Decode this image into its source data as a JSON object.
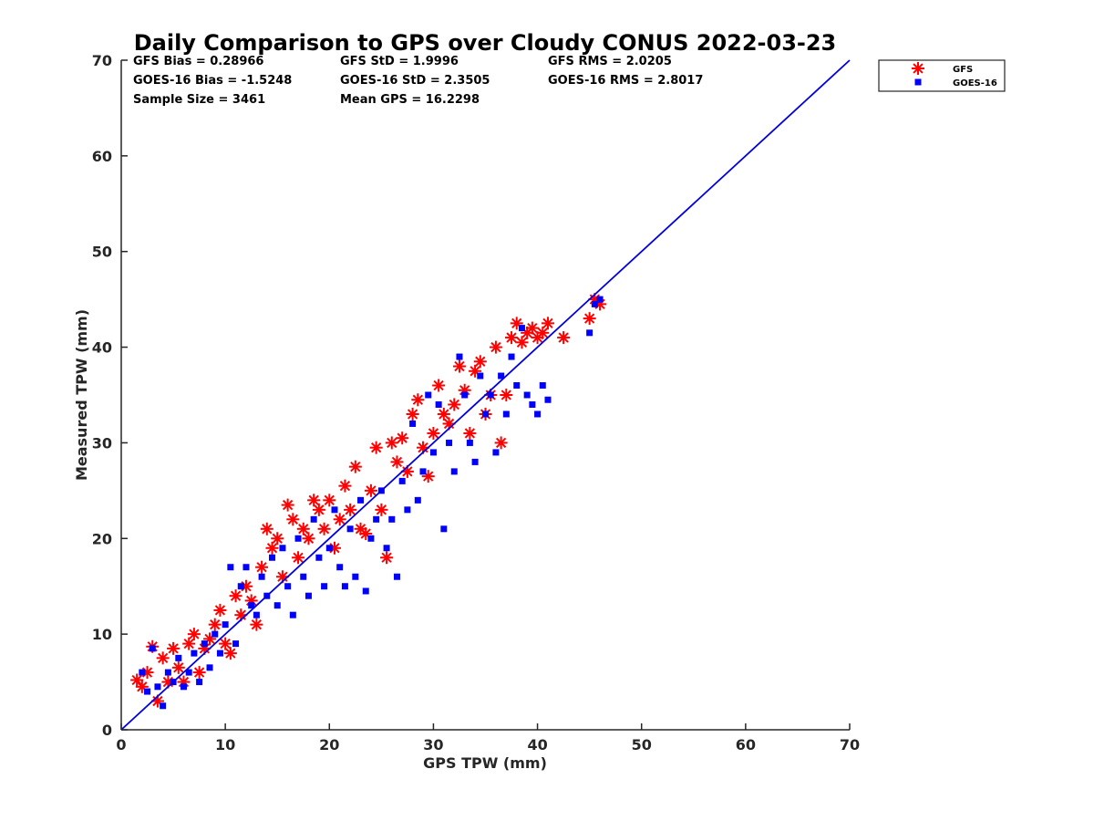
{
  "chart_data": {
    "type": "scatter",
    "title": "Daily Comparison to GPS over Cloudy CONUS 2022-03-23",
    "xlabel": "GPS TPW (mm)",
    "ylabel": "Measured TPW (mm)",
    "xlim": [
      0,
      70
    ],
    "ylim": [
      0,
      70
    ],
    "xticks": [
      "0",
      "10",
      "20",
      "30",
      "40",
      "50",
      "60",
      "70"
    ],
    "yticks": [
      "0",
      "10",
      "20",
      "30",
      "40",
      "50",
      "60",
      "70"
    ],
    "grid": false,
    "legend_position": "outside top-right",
    "reference_line": {
      "x": [
        0,
        70
      ],
      "y": [
        0,
        70
      ],
      "color": "#0000e0"
    },
    "stats": [
      [
        "GFS Bias = 0.28966",
        "GFS StD = 1.9996",
        "GFS RMS = 2.0205"
      ],
      [
        "GOES-16 Bias = -1.5248",
        "GOES-16 StD = 2.3505",
        "GOES-16 RMS = 2.8017"
      ],
      [
        "Sample Size = 3461",
        "Mean GPS = 16.2298",
        ""
      ]
    ],
    "series": [
      {
        "name": "GFS",
        "marker": "asterisk",
        "color": "#ff0000",
        "points": [
          [
            1.5,
            5.2
          ],
          [
            2,
            4.5
          ],
          [
            2.5,
            6
          ],
          [
            3,
            8.7
          ],
          [
            3.5,
            3
          ],
          [
            4,
            7.5
          ],
          [
            4.5,
            5
          ],
          [
            5,
            8.5
          ],
          [
            5.5,
            6.5
          ],
          [
            6,
            5
          ],
          [
            6.5,
            9
          ],
          [
            7,
            10
          ],
          [
            7.5,
            6
          ],
          [
            8,
            8.5
          ],
          [
            8.5,
            9.5
          ],
          [
            9,
            11
          ],
          [
            9.5,
            12.5
          ],
          [
            10,
            9
          ],
          [
            10.5,
            8
          ],
          [
            11,
            14
          ],
          [
            11.5,
            12
          ],
          [
            12,
            15
          ],
          [
            12.5,
            13.5
          ],
          [
            13,
            11
          ],
          [
            13.5,
            17
          ],
          [
            14,
            21
          ],
          [
            14.5,
            19
          ],
          [
            15,
            20
          ],
          [
            15.5,
            16
          ],
          [
            16,
            23.5
          ],
          [
            16.5,
            22
          ],
          [
            17,
            18
          ],
          [
            17.5,
            21
          ],
          [
            18,
            20
          ],
          [
            18.5,
            24
          ],
          [
            19,
            23
          ],
          [
            19.5,
            21
          ],
          [
            20,
            24
          ],
          [
            20.5,
            19
          ],
          [
            21,
            22
          ],
          [
            21.5,
            25.5
          ],
          [
            22,
            23
          ],
          [
            22.5,
            27.5
          ],
          [
            23,
            21
          ],
          [
            23.5,
            20.5
          ],
          [
            24,
            25
          ],
          [
            24.5,
            29.5
          ],
          [
            25,
            23
          ],
          [
            25.5,
            18
          ],
          [
            26,
            30
          ],
          [
            26.5,
            28
          ],
          [
            27,
            30.5
          ],
          [
            27.5,
            27
          ],
          [
            28,
            33
          ],
          [
            28.5,
            34.5
          ],
          [
            29,
            29.5
          ],
          [
            29.5,
            26.5
          ],
          [
            30,
            31
          ],
          [
            30.5,
            36
          ],
          [
            31,
            33
          ],
          [
            31.5,
            32
          ],
          [
            32,
            34
          ],
          [
            32.5,
            38
          ],
          [
            33,
            35.5
          ],
          [
            33.5,
            31
          ],
          [
            34,
            37.5
          ],
          [
            34.5,
            38.5
          ],
          [
            35,
            33
          ],
          [
            35.5,
            35
          ],
          [
            36,
            40
          ],
          [
            36.5,
            30
          ],
          [
            37,
            35
          ],
          [
            37.5,
            41
          ],
          [
            38,
            42.5
          ],
          [
            38.5,
            40.5
          ],
          [
            39,
            41.5
          ],
          [
            39.5,
            42
          ],
          [
            40,
            41
          ],
          [
            40.5,
            41.5
          ],
          [
            41,
            42.5
          ],
          [
            42.5,
            41
          ],
          [
            45,
            43
          ],
          [
            45.5,
            45
          ],
          [
            46,
            44.5
          ]
        ]
      },
      {
        "name": "GOES-16",
        "marker": "square",
        "color": "#0000ff",
        "points": [
          [
            2,
            6
          ],
          [
            2.5,
            4
          ],
          [
            3,
            8.5
          ],
          [
            3.5,
            4.5
          ],
          [
            4,
            2.5
          ],
          [
            4.5,
            6
          ],
          [
            5,
            5
          ],
          [
            5.5,
            7.5
          ],
          [
            6,
            4.5
          ],
          [
            6.5,
            6
          ],
          [
            7,
            8
          ],
          [
            7.5,
            5
          ],
          [
            8,
            9
          ],
          [
            8.5,
            6.5
          ],
          [
            9,
            10
          ],
          [
            9.5,
            8
          ],
          [
            10,
            11
          ],
          [
            10.5,
            17
          ],
          [
            11,
            9
          ],
          [
            11.5,
            15
          ],
          [
            12,
            17
          ],
          [
            12.5,
            13
          ],
          [
            13,
            12
          ],
          [
            13.5,
            16
          ],
          [
            14,
            14
          ],
          [
            14.5,
            18
          ],
          [
            15,
            13
          ],
          [
            15.5,
            19
          ],
          [
            16,
            15
          ],
          [
            16.5,
            12
          ],
          [
            17,
            20
          ],
          [
            17.5,
            16
          ],
          [
            18,
            14
          ],
          [
            18.5,
            22
          ],
          [
            19,
            18
          ],
          [
            19.5,
            15
          ],
          [
            20,
            19
          ],
          [
            20.5,
            23
          ],
          [
            21,
            17
          ],
          [
            21.5,
            15
          ],
          [
            22,
            21
          ],
          [
            22.5,
            16
          ],
          [
            23,
            24
          ],
          [
            23.5,
            14.5
          ],
          [
            24,
            20
          ],
          [
            24.5,
            22
          ],
          [
            25,
            25
          ],
          [
            25.5,
            19
          ],
          [
            26,
            22
          ],
          [
            26.5,
            16
          ],
          [
            27,
            26
          ],
          [
            27.5,
            23
          ],
          [
            28,
            32
          ],
          [
            28.5,
            24
          ],
          [
            29,
            27
          ],
          [
            29.5,
            35
          ],
          [
            30,
            29
          ],
          [
            30.5,
            34
          ],
          [
            31,
            21
          ],
          [
            31.5,
            30
          ],
          [
            32,
            27
          ],
          [
            32.5,
            39
          ],
          [
            33,
            35
          ],
          [
            33.5,
            30
          ],
          [
            34,
            28
          ],
          [
            34.5,
            37
          ],
          [
            35,
            33
          ],
          [
            35.5,
            35
          ],
          [
            36,
            29
          ],
          [
            36.5,
            37
          ],
          [
            37,
            33
          ],
          [
            37.5,
            39
          ],
          [
            38,
            36
          ],
          [
            38.5,
            42
          ],
          [
            39,
            35
          ],
          [
            39.5,
            34
          ],
          [
            40,
            33
          ],
          [
            40.5,
            36
          ],
          [
            41,
            34.5
          ],
          [
            45,
            41.5
          ],
          [
            45.5,
            44.5
          ],
          [
            46,
            45
          ]
        ]
      }
    ]
  }
}
